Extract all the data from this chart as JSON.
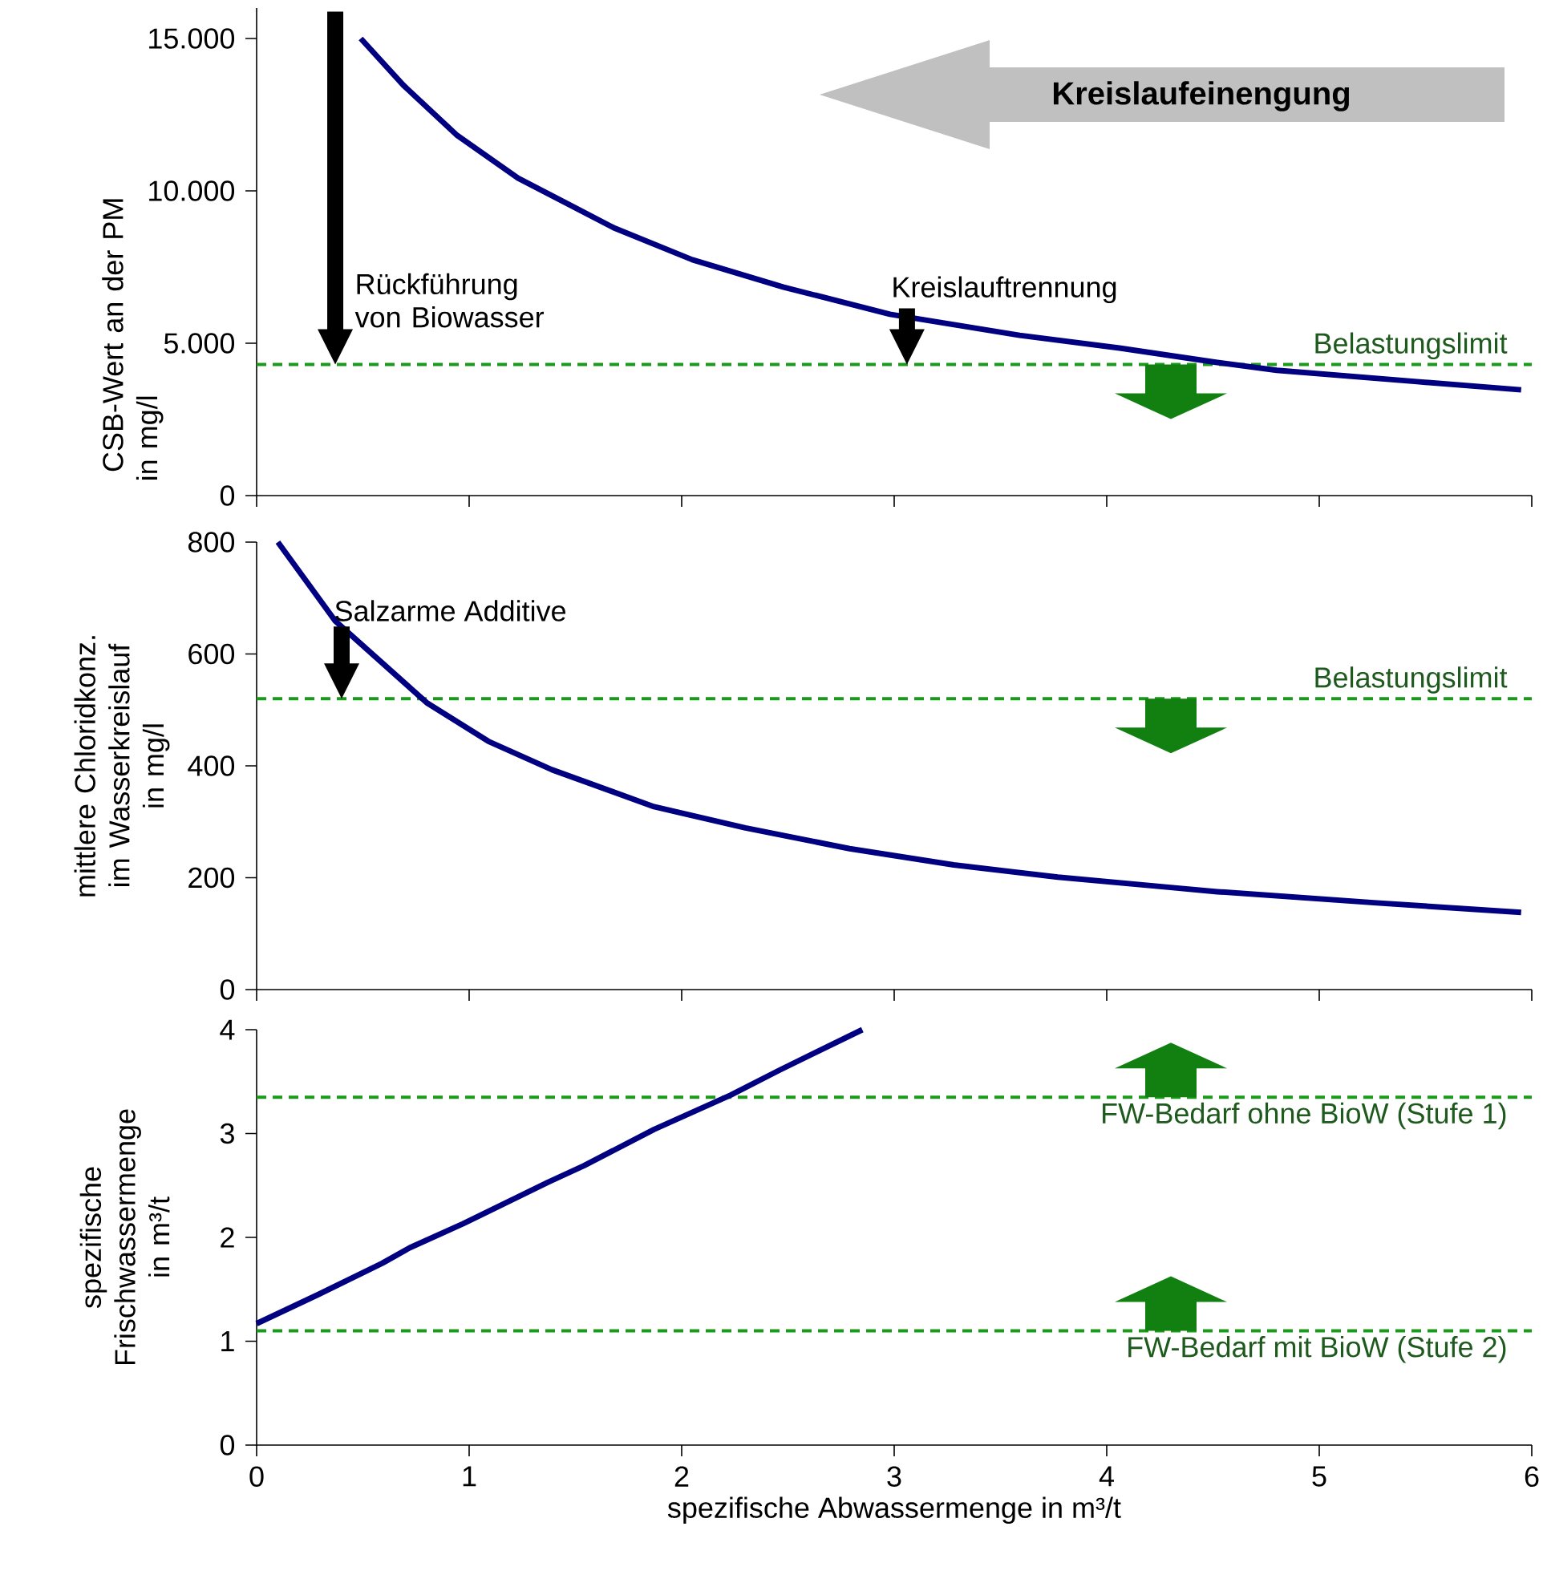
{
  "chart_data": [
    {
      "type": "line",
      "ylabel": "CSB-Wert an der PM in mg/l",
      "xlim": [
        0,
        6
      ],
      "ylim": [
        0,
        16000
      ],
      "xticks": [
        0,
        1,
        2,
        3,
        4,
        5,
        6
      ],
      "yticks": [
        0,
        {
          "value": 5000,
          "label": "5.000"
        },
        {
          "value": 10000,
          "label": "10.000"
        },
        {
          "value": 15000,
          "label": "15.000"
        }
      ],
      "tick_labels": "y",
      "series": [
        {
          "color": "#000080",
          "x": [
            0.49,
            0.69,
            0.94,
            1.23,
            1.68,
            2.05,
            2.48,
            2.98,
            3.59,
            4.06,
            4.52,
            4.8,
            5.46,
            5.95
          ],
          "values": [
            15000,
            13470,
            11840,
            10420,
            8790,
            7740,
            6840,
            5950,
            5260,
            4840,
            4370,
            4110,
            3740,
            3470
          ]
        }
      ],
      "ref_lines": [
        {
          "axis": "y",
          "value": 4300,
          "label": "Belastungslimit",
          "color": "#1a991a",
          "line_style": "dashed"
        }
      ],
      "annotations": [
        {
          "text": "Rückführung von Biowasser",
          "x": 0.37,
          "y": 4300
        },
        {
          "text": "Kreislauftrennung",
          "x": 3.06,
          "y": 4300
        },
        "Kreislaufeinengung"
      ]
    },
    {
      "type": "line",
      "ylabel": "mittlere Chloridkonz. im Wasserkreislauf in mg/l",
      "xlim": [
        0,
        6
      ],
      "ylim": [
        0,
        800
      ],
      "xticks": [
        0,
        1,
        2,
        3,
        4,
        5,
        6
      ],
      "yticks": [
        0,
        200,
        400,
        600,
        800
      ],
      "tick_labels": "y",
      "series": [
        {
          "color": "#000080",
          "x": [
            0.1,
            0.37,
            0.8,
            1.09,
            1.39,
            1.87,
            2.3,
            2.79,
            3.28,
            3.77,
            4.29,
            4.52,
            5.27,
            5.95
          ],
          "values": [
            800,
            659,
            513,
            444,
            393,
            327,
            289,
            252,
            223,
            201,
            183,
            175,
            155,
            138
          ]
        }
      ],
      "ref_lines": [
        {
          "axis": "y",
          "value": 520,
          "label": "Belastungslimit",
          "color": "#1a991a",
          "line_style": "dashed"
        }
      ],
      "annotations": [
        {
          "text": "Salzarme Additive",
          "x": 0.4,
          "y": 520
        }
      ]
    },
    {
      "type": "line",
      "ylabel": "spezifische Frischwassermenge in m³/t",
      "xlabel": "spezifische Abwassermenge in m³/t",
      "xlim": [
        0,
        6
      ],
      "ylim": [
        0,
        4
      ],
      "xticks": [
        0,
        1,
        2,
        3,
        4,
        5,
        6
      ],
      "yticks": [
        0,
        1,
        2,
        3,
        4
      ],
      "series": [
        {
          "color": "#000080",
          "x": [
            0,
            0.29,
            0.59,
            0.72,
            0.97,
            1.37,
            1.54,
            1.87,
            2.23,
            2.46,
            2.85
          ],
          "values": [
            1.17,
            1.45,
            1.75,
            1.9,
            2.13,
            2.53,
            2.69,
            3.04,
            3.37,
            3.61,
            4.0
          ]
        }
      ],
      "ref_lines": [
        {
          "axis": "y",
          "value": 3.35,
          "label": "FW-Bedarf ohne BioW (Stufe 1)",
          "color": "#1a991a",
          "line_style": "dashed"
        },
        {
          "axis": "y",
          "value": 1.1,
          "label": "FW-Bedarf mit BioW (Stufe 2)",
          "color": "#1a991a",
          "line_style": "dashed"
        }
      ]
    }
  ]
}
